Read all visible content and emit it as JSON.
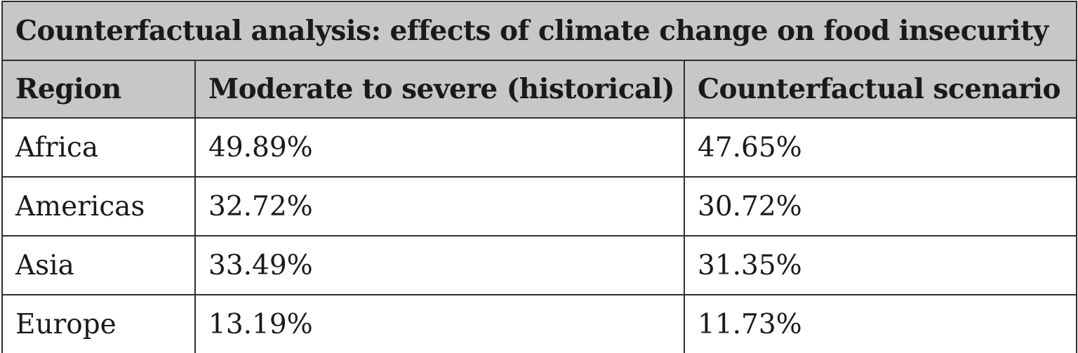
{
  "table": {
    "title": "Counterfactual analysis: effects of climate change on food insecurity",
    "columns": [
      "Region",
      "Moderate to severe (historical)",
      "Counterfactual scenario"
    ],
    "rows": [
      [
        "Africa",
        "49.89%",
        "47.65%"
      ],
      [
        "Americas",
        "32.72%",
        "30.72%"
      ],
      [
        "Asia",
        "33.49%",
        "31.35%"
      ],
      [
        "Europe",
        "13.19%",
        "11.73%"
      ]
    ]
  }
}
